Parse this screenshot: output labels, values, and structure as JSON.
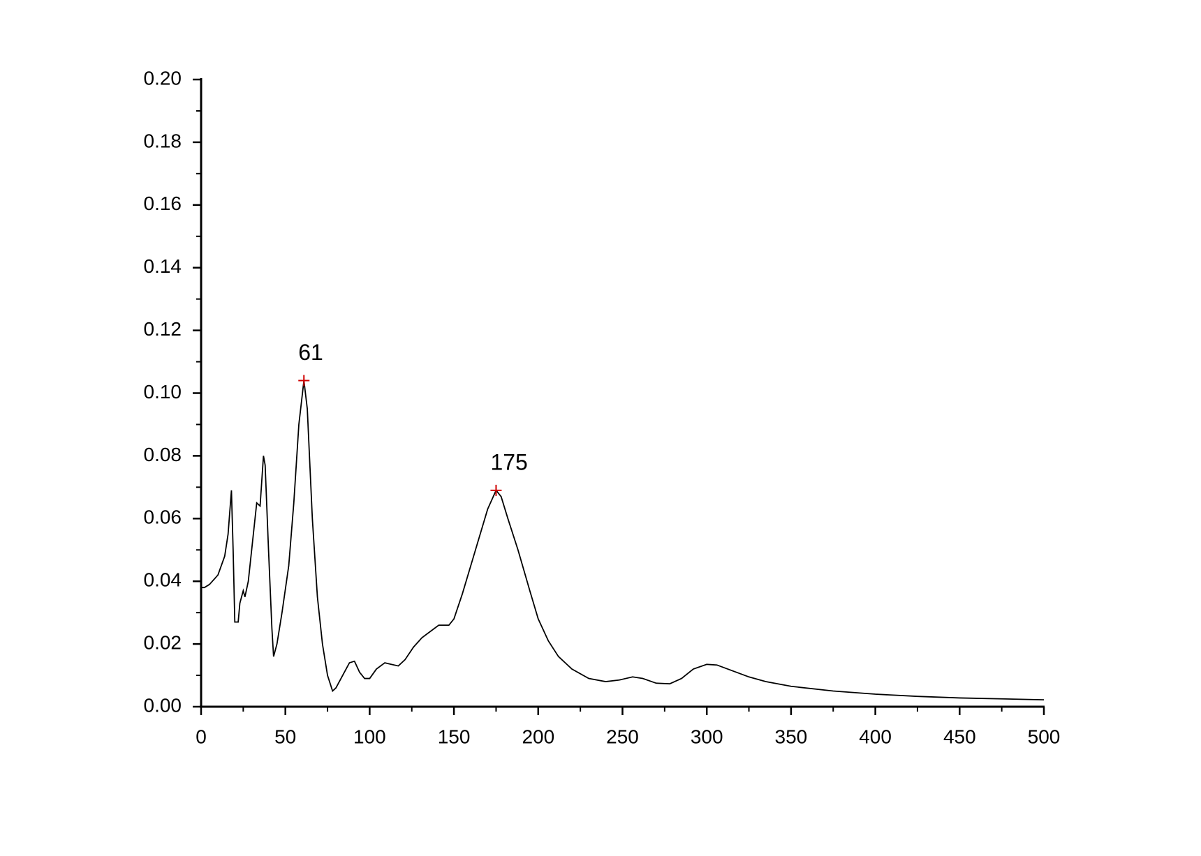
{
  "chart_data": {
    "type": "line",
    "x": [
      0,
      2,
      5,
      10,
      14,
      16,
      18,
      19,
      20,
      22,
      23,
      25,
      26,
      28,
      31,
      33,
      35,
      37,
      38,
      40,
      42,
      43,
      45,
      48,
      52,
      55,
      58,
      61,
      63,
      66,
      69,
      72,
      75,
      78,
      80,
      84,
      88,
      91,
      94,
      97,
      100,
      104,
      109,
      113,
      117,
      121,
      126,
      131,
      136,
      141,
      143,
      147,
      150,
      155,
      160,
      165,
      170,
      175,
      178,
      182,
      188,
      195,
      200,
      206,
      212,
      220,
      230,
      240,
      248,
      256,
      262,
      270,
      278,
      285,
      292,
      300,
      306,
      315,
      325,
      335,
      350,
      375,
      400,
      425,
      450,
      475,
      500
    ],
    "series": [
      {
        "color": "#000000",
        "values": [
          0.038,
          0.038,
          0.039,
          0.042,
          0.048,
          0.055,
          0.069,
          0.05,
          0.027,
          0.027,
          0.033,
          0.037,
          0.035,
          0.04,
          0.055,
          0.065,
          0.064,
          0.08,
          0.077,
          0.05,
          0.025,
          0.016,
          0.02,
          0.03,
          0.045,
          0.065,
          0.09,
          0.104,
          0.095,
          0.06,
          0.035,
          0.02,
          0.01,
          0.005,
          0.006,
          0.01,
          0.014,
          0.0145,
          0.011,
          0.009,
          0.009,
          0.012,
          0.014,
          0.0135,
          0.013,
          0.015,
          0.019,
          0.022,
          0.024,
          0.026,
          0.026,
          0.026,
          0.028,
          0.036,
          0.045,
          0.054,
          0.063,
          0.069,
          0.067,
          0.06,
          0.05,
          0.037,
          0.028,
          0.021,
          0.016,
          0.012,
          0.009,
          0.008,
          0.0085,
          0.0095,
          0.009,
          0.0075,
          0.0073,
          0.009,
          0.012,
          0.0135,
          0.0133,
          0.0115,
          0.0095,
          0.008,
          0.0065,
          0.005,
          0.004,
          0.0033,
          0.0028,
          0.0025,
          0.0022
        ]
      }
    ],
    "peaks": {
      "color": "#d00000",
      "x": [
        61,
        175
      ],
      "values": [
        0.104,
        0.069
      ]
    },
    "xlim": [
      0,
      500
    ],
    "ylim": [
      0,
      0.2
    ],
    "xticks": [
      0,
      50,
      100,
      150,
      200,
      250,
      300,
      350,
      400,
      450,
      500
    ],
    "xminorticks": [
      25,
      75,
      125,
      175,
      225,
      275,
      325,
      375,
      425,
      475
    ],
    "yticks": [
      {
        "value": 0,
        "label": "0.00"
      },
      {
        "value": 0.02,
        "label": "0.02"
      },
      {
        "value": 0.04,
        "label": "0.04"
      },
      {
        "value": 0.06,
        "label": "0.06"
      },
      {
        "value": 0.08,
        "label": "0.08"
      },
      {
        "value": 0.1,
        "label": "0.10"
      },
      {
        "value": 0.12,
        "label": "0.12"
      },
      {
        "value": 0.14,
        "label": "0.14"
      },
      {
        "value": 0.16,
        "label": "0.16"
      },
      {
        "value": 0.18,
        "label": "0.18"
      },
      {
        "value": 0.2,
        "label": "0.20"
      }
    ],
    "yminorticks": [
      0.01,
      0.03,
      0.05,
      0.07,
      0.09,
      0.11,
      0.13,
      0.15,
      0.17,
      0.19
    ]
  }
}
